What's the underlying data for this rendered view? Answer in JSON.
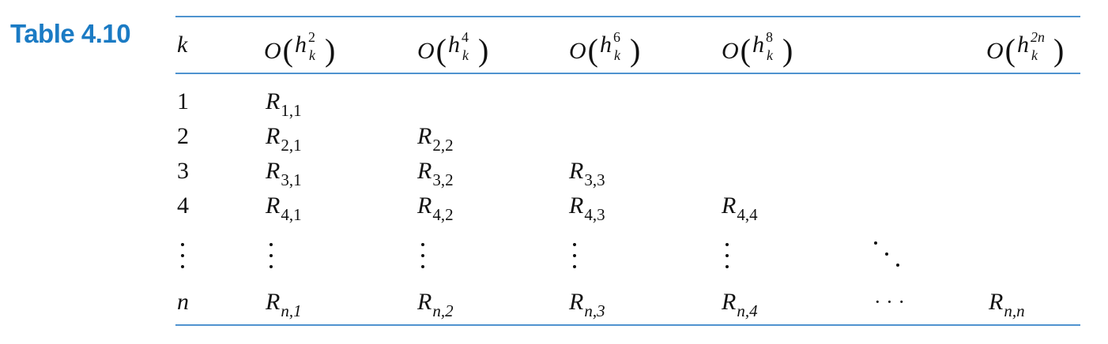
{
  "caption": {
    "label": "Table 4.10"
  },
  "header": {
    "k": "k",
    "cols": [
      {
        "base": "O",
        "h": "h",
        "power": "2",
        "sub": "k"
      },
      {
        "base": "O",
        "h": "h",
        "power": "4",
        "sub": "k"
      },
      {
        "base": "O",
        "h": "h",
        "power": "6",
        "sub": "k"
      },
      {
        "base": "O",
        "h": "h",
        "power": "8",
        "sub": "k"
      },
      {
        "base": "O",
        "h": "h",
        "power": "2n",
        "sub": "k"
      }
    ]
  },
  "rows": [
    {
      "k": "1",
      "cells": [
        {
          "R": "R",
          "sub": "1,1"
        }
      ]
    },
    {
      "k": "2",
      "cells": [
        {
          "R": "R",
          "sub": "2,1"
        },
        {
          "R": "R",
          "sub": "2,2"
        }
      ]
    },
    {
      "k": "3",
      "cells": [
        {
          "R": "R",
          "sub": "3,1"
        },
        {
          "R": "R",
          "sub": "3,2"
        },
        {
          "R": "R",
          "sub": "3,3"
        }
      ]
    },
    {
      "k": "4",
      "cells": [
        {
          "R": "R",
          "sub": "4,1"
        },
        {
          "R": "R",
          "sub": "4,2"
        },
        {
          "R": "R",
          "sub": "4,3"
        },
        {
          "R": "R",
          "sub": "4,4"
        }
      ]
    },
    {
      "k": "n",
      "cells": [
        {
          "R": "R",
          "sub": "n,1"
        },
        {
          "R": "R",
          "sub": "n,2"
        },
        {
          "R": "R",
          "sub": "n,3"
        },
        {
          "R": "R",
          "sub": "n,4"
        },
        {
          "R": "R",
          "sub": "n,n"
        }
      ],
      "ellipsis": "· · ·"
    }
  ],
  "colors": {
    "label": "#1b7bc4",
    "rules": "#4f93cf",
    "text": "#111111"
  }
}
